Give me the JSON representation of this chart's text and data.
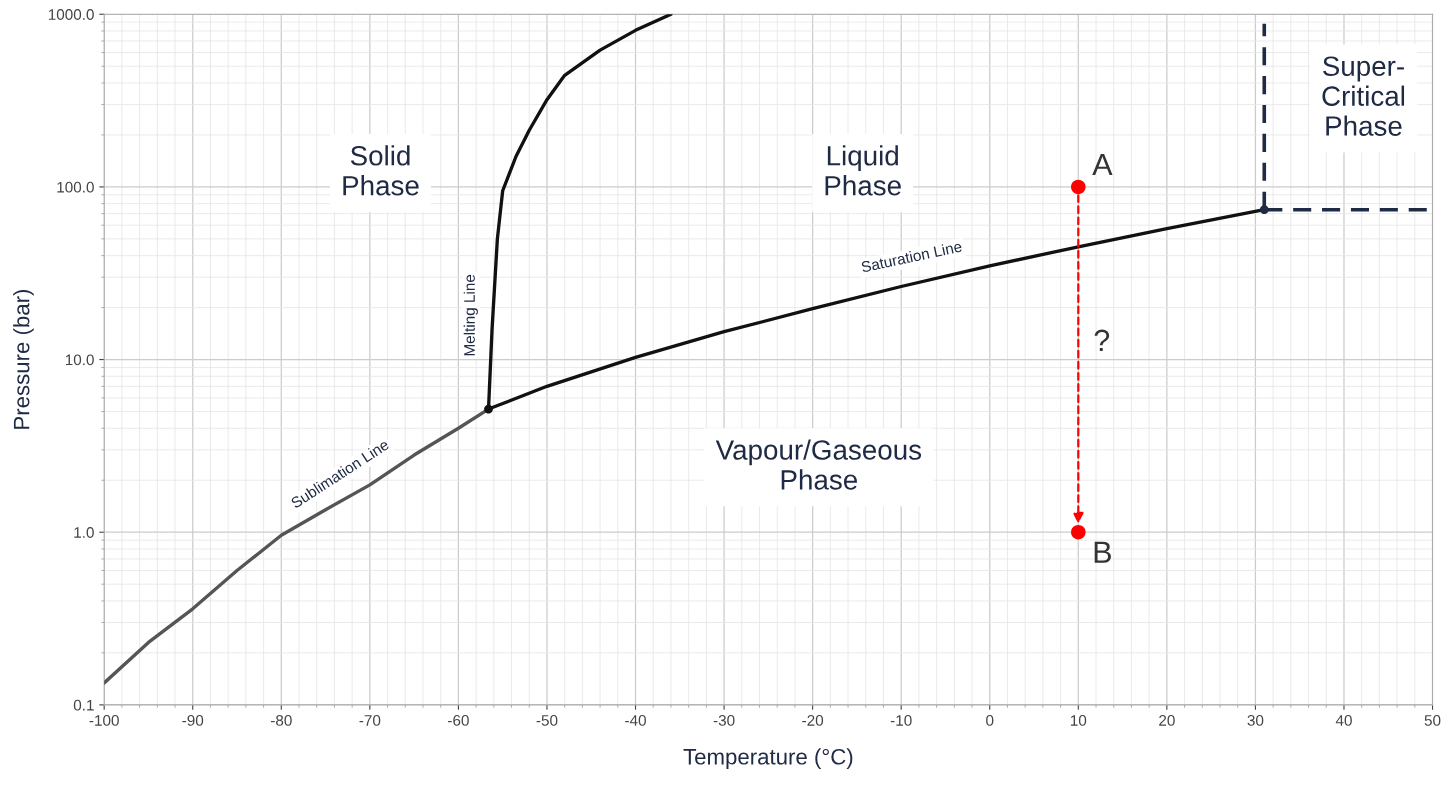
{
  "chart_data": {
    "type": "line",
    "xlabel": "Temperature (°C)",
    "ylabel": "Pressure (bar)",
    "log": "y",
    "xlim": [
      -100,
      50
    ],
    "xticks": [
      -100,
      -90,
      -80,
      -70,
      -60,
      -50,
      -40,
      -30,
      -20,
      -10,
      0,
      10,
      20,
      30,
      40,
      50
    ],
    "ylim": [
      0.1,
      1000
    ],
    "yticks": [
      {
        "value": 0.1,
        "label": "0.1"
      },
      {
        "value": 1,
        "label": "1.0"
      },
      {
        "value": 10,
        "label": "10.0"
      },
      {
        "value": 100,
        "label": "100.0"
      },
      {
        "value": 1000,
        "label": "1000.0"
      }
    ],
    "grid": true,
    "series": [
      {
        "color": "#555555",
        "x": [
          -100,
          -95,
          -90,
          -85,
          -80,
          -75,
          -70,
          -65,
          -60,
          -56.6
        ],
        "values": [
          0.134,
          0.23,
          0.36,
          0.6,
          0.96,
          1.35,
          1.88,
          2.8,
          4.0,
          5.17
        ]
      },
      {
        "color": "#111111",
        "x": [
          -56.6,
          -56.2,
          -55.6,
          -55,
          -53.5,
          -52,
          -50,
          -48,
          -44,
          -40,
          -36
        ],
        "values": [
          5.17,
          15,
          50,
          95,
          150,
          213,
          320,
          443,
          620,
          807,
          1000
        ]
      },
      {
        "color": "#111111",
        "x": [
          -56.6,
          -50,
          -40,
          -30,
          -20,
          -10,
          0,
          10,
          20,
          31
        ],
        "values": [
          5.17,
          7.0,
          10.3,
          14.5,
          19.7,
          26.5,
          34.9,
          45,
          57.3,
          73.8
        ]
      },
      {
        "color": "#1f2a44",
        "line_style": "dashed",
        "x": [
          31,
          31
        ],
        "values": [
          73.8,
          880
        ]
      },
      {
        "color": "#1f2a44",
        "line_style": "dashed",
        "x": [
          31,
          50
        ],
        "values": [
          73.8,
          73.8
        ]
      },
      {
        "type": "scatter",
        "color": "#111111",
        "marker": "circle",
        "x": [
          -56.6
        ],
        "values": [
          5.17
        ]
      },
      {
        "type": "scatter",
        "color": "#1f2a44",
        "marker": "circle",
        "x": [
          31
        ],
        "values": [
          73.8
        ]
      },
      {
        "type": "scatter",
        "color": "#ff0000",
        "marker": "circle",
        "x": [
          10,
          10
        ],
        "values": [
          100,
          1
        ]
      }
    ],
    "annotations": [
      "Solid\nPhase",
      "Liquid\nPhase",
      "Super-\nCritical\nPhase",
      "Vapour/Gaseous\nPhase",
      "Melting Line",
      "Sublimation Line",
      "Saturation Line",
      {
        "text": "A",
        "x": 10,
        "y": 100
      },
      {
        "text": "B",
        "x": 10,
        "y": 1
      },
      "?"
    ]
  }
}
